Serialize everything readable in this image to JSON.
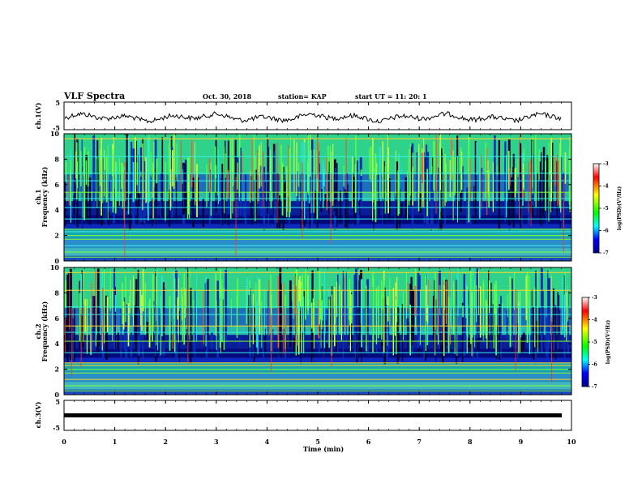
{
  "header": {
    "title": "VLF Spectra",
    "date": "Oct. 30, 2018",
    "station": "station= KAP",
    "start": "start  UT =   11: 20: 1"
  },
  "chart_data": [
    {
      "type": "line",
      "name": "ch1-waveform",
      "ylabel": "ch.1(V)",
      "ylim": [
        -5,
        5
      ],
      "yticks": [
        "5",
        "-5"
      ],
      "xlim": [
        0,
        10
      ],
      "trend": "noisy waveform fluctuating roughly between -1 and +1 V"
    },
    {
      "type": "heatmap",
      "name": "ch1-spectrogram",
      "ylabel": "ch.1\nFrequency (kHz)",
      "ylim": [
        0,
        10
      ],
      "yticks": [
        "0",
        "2",
        "4",
        "6",
        "8",
        "10"
      ],
      "xlim": [
        0,
        10
      ],
      "colorbar": {
        "label": "log(PSD)(V²/Hz)",
        "range": [
          -7,
          -3
        ],
        "ticks": [
          "-3",
          "-4",
          "-5",
          "-6",
          "-7"
        ]
      }
    },
    {
      "type": "heatmap",
      "name": "ch2-spectrogram",
      "ylabel": "ch.2\nFrequency (kHz)",
      "ylim": [
        0,
        10
      ],
      "yticks": [
        "0",
        "2",
        "4",
        "6",
        "8",
        "10"
      ],
      "xlim": [
        0,
        10
      ],
      "colorbar": {
        "label": "log(PSD)(V²/Hz)",
        "range": [
          -7,
          -3
        ],
        "ticks": [
          "-3",
          "-4",
          "-5",
          "-6",
          "-7"
        ]
      }
    },
    {
      "type": "line",
      "name": "ch3-waveform",
      "ylabel": "ch.3(V)",
      "ylim": [
        -5,
        5
      ],
      "yticks": [
        "5",
        "-5"
      ],
      "xlim": [
        0,
        10
      ],
      "trend": "flat line near 0 V"
    }
  ],
  "xaxis": {
    "label": "Time  (min)",
    "ticks": [
      "0",
      "1",
      "2",
      "3",
      "4",
      "5",
      "6",
      "7",
      "8",
      "9",
      "10"
    ]
  },
  "colorbar": {
    "label": "log(PSD)(V²/Hz)",
    "ticks": [
      "-3",
      "-4",
      "-5",
      "-6",
      "-7"
    ],
    "colors": [
      "#ffffff",
      "#ff0000",
      "#ffff00",
      "#00ff00",
      "#00ffff",
      "#0000ff",
      "#00008b"
    ]
  }
}
